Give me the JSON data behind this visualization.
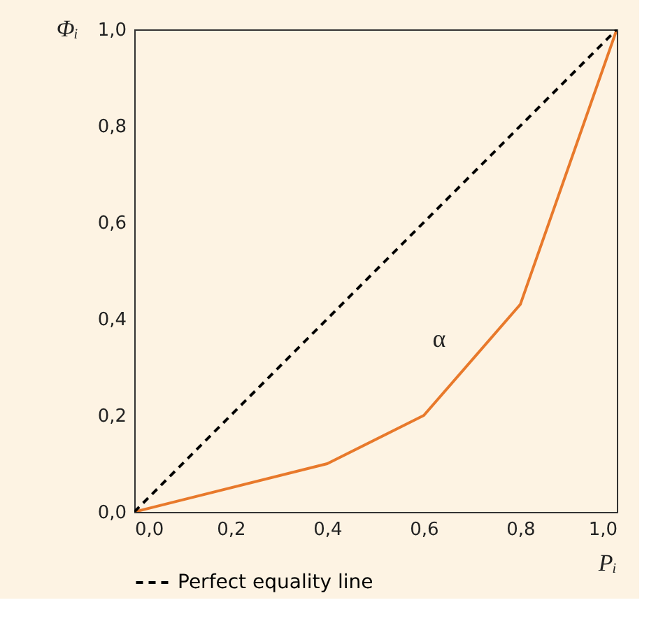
{
  "chart_data": {
    "type": "line",
    "xlabel": "Pᵢ",
    "ylabel": "Φᵢ",
    "series": [
      {
        "color": "#e8792b",
        "line_style": "solid",
        "x": [
          0,
          0.4,
          0.6,
          0.8,
          1.0
        ],
        "values": [
          0,
          0.1,
          0.2,
          0.43,
          1.0
        ]
      },
      {
        "name": "Perfect equality line",
        "color": "#000000",
        "line_style": "dashed",
        "x": [
          0,
          1.0
        ],
        "values": [
          0,
          1.0
        ]
      }
    ],
    "annotations": [
      "α"
    ],
    "xlim": [
      0,
      1.0
    ],
    "ylim": [
      0,
      1.0
    ],
    "xticks": [
      {
        "value": 0,
        "label": "0,0"
      },
      {
        "value": 0.2,
        "label": "0,2"
      },
      {
        "value": 0.4,
        "label": "0,4"
      },
      {
        "value": 0.6,
        "label": "0,6"
      },
      {
        "value": 0.8,
        "label": "0,8"
      },
      {
        "value": 1.0,
        "label": "1,0"
      }
    ],
    "yticks": [
      {
        "value": 0,
        "label": "0,0"
      },
      {
        "value": 0.2,
        "label": "0,2"
      },
      {
        "value": 0.4,
        "label": "0,4"
      },
      {
        "value": 0.6,
        "label": "0,6"
      },
      {
        "value": 0.8,
        "label": "0,8"
      },
      {
        "value": 1.0,
        "label": "1,0"
      }
    ],
    "grid": false,
    "legend": "bottom",
    "marker": "none"
  }
}
